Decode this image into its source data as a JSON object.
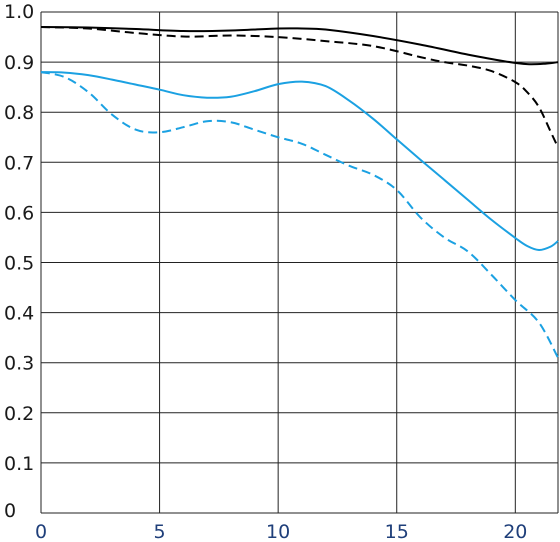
{
  "chart_data": {
    "type": "line",
    "x_ticks": [
      "0",
      "5",
      "10",
      "15",
      "20"
    ],
    "y_ticks": [
      "0",
      "0.1",
      "0.2",
      "0.3",
      "0.4",
      "0.5",
      "0.6",
      "0.7",
      "0.8",
      "0.9",
      "1.0"
    ],
    "xlim": [
      0,
      21.8
    ],
    "ylim": [
      0,
      1.0
    ],
    "grid": true,
    "legend": "none",
    "series": [
      {
        "color": "#000000",
        "dash": "solid",
        "x": [
          0,
          2,
          4,
          6,
          8,
          10,
          11,
          12,
          14,
          16,
          18,
          19.5,
          20.5,
          21.3,
          21.8
        ],
        "y": [
          0.97,
          0.969,
          0.966,
          0.962,
          0.963,
          0.967,
          0.967,
          0.965,
          0.952,
          0.935,
          0.915,
          0.902,
          0.896,
          0.897,
          0.9
        ]
      },
      {
        "color": "#000000",
        "dash": "dashed",
        "x": [
          0,
          2,
          4,
          6,
          8,
          10,
          12,
          14,
          16,
          17,
          18,
          19,
          20,
          20.5,
          21,
          21.5,
          21.8
        ],
        "y": [
          0.97,
          0.967,
          0.958,
          0.951,
          0.953,
          0.95,
          0.942,
          0.932,
          0.91,
          0.9,
          0.893,
          0.882,
          0.86,
          0.84,
          0.81,
          0.76,
          0.73
        ]
      },
      {
        "color": "#1ba1e2",
        "dash": "solid",
        "x": [
          0,
          1,
          2,
          3,
          4,
          5,
          6,
          7,
          8,
          9,
          10,
          11,
          12,
          13,
          14,
          15,
          16,
          17,
          18,
          19,
          20,
          20.5,
          21,
          21.5,
          21.8
        ],
        "y": [
          0.88,
          0.879,
          0.874,
          0.865,
          0.855,
          0.845,
          0.834,
          0.829,
          0.831,
          0.842,
          0.856,
          0.861,
          0.852,
          0.823,
          0.787,
          0.746,
          0.705,
          0.665,
          0.625,
          0.585,
          0.549,
          0.533,
          0.525,
          0.532,
          0.543
        ]
      },
      {
        "color": "#1ba1e2",
        "dash": "dashed",
        "x": [
          0,
          1,
          2,
          3,
          4,
          5,
          6,
          7,
          8,
          9,
          10,
          11,
          12,
          13,
          14,
          15,
          16,
          17,
          18,
          19,
          20,
          21,
          21.8
        ],
        "y": [
          0.88,
          0.87,
          0.84,
          0.795,
          0.765,
          0.76,
          0.77,
          0.782,
          0.78,
          0.765,
          0.75,
          0.737,
          0.715,
          0.693,
          0.675,
          0.645,
          0.59,
          0.55,
          0.522,
          0.475,
          0.425,
          0.38,
          0.31
        ]
      }
    ]
  }
}
